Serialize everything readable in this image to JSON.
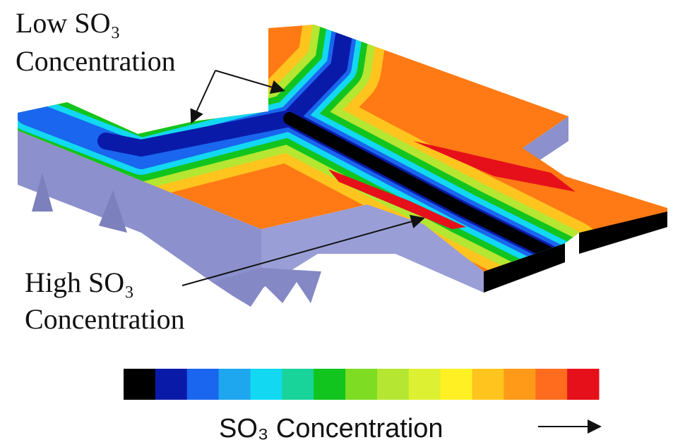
{
  "annotations": {
    "low": {
      "line1": "Low SO₃",
      "line2": "Concentration"
    },
    "high": {
      "line1": "High SO₃",
      "line2": "Concentration"
    }
  },
  "colorbar": {
    "label": "SO₃ Concentration",
    "colors": [
      "#000000",
      "#0a1aa8",
      "#1a66ee",
      "#1ea6ee",
      "#12d8f2",
      "#18d49a",
      "#12c41e",
      "#7edc22",
      "#b4e632",
      "#def032",
      "#fff024",
      "#ffc41e",
      "#ff9a18",
      "#ff6c1e",
      "#e6101a"
    ]
  }
}
